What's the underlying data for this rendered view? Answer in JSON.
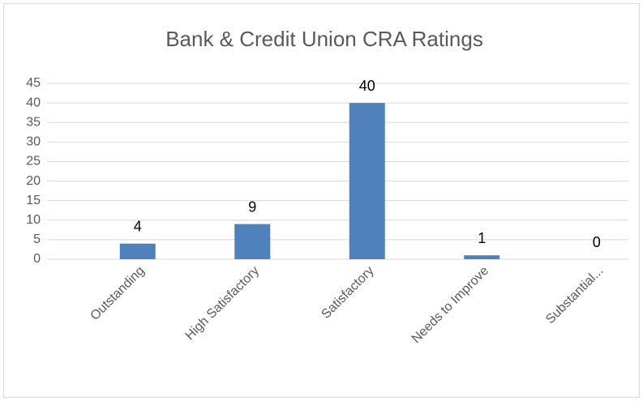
{
  "chart_data": {
    "type": "bar",
    "title": "Bank & Credit Union CRA Ratings",
    "categories": [
      "Outstanding",
      "High Satisfactory",
      "Satisfactory",
      "Needs to Improve",
      "Substantial..."
    ],
    "values": [
      4,
      9,
      40,
      1,
      0
    ],
    "color": "#4f81bd",
    "ylim": [
      0,
      45
    ],
    "yticks": [
      0,
      5,
      10,
      15,
      20,
      25,
      30,
      35,
      40,
      45
    ],
    "grid": true
  }
}
